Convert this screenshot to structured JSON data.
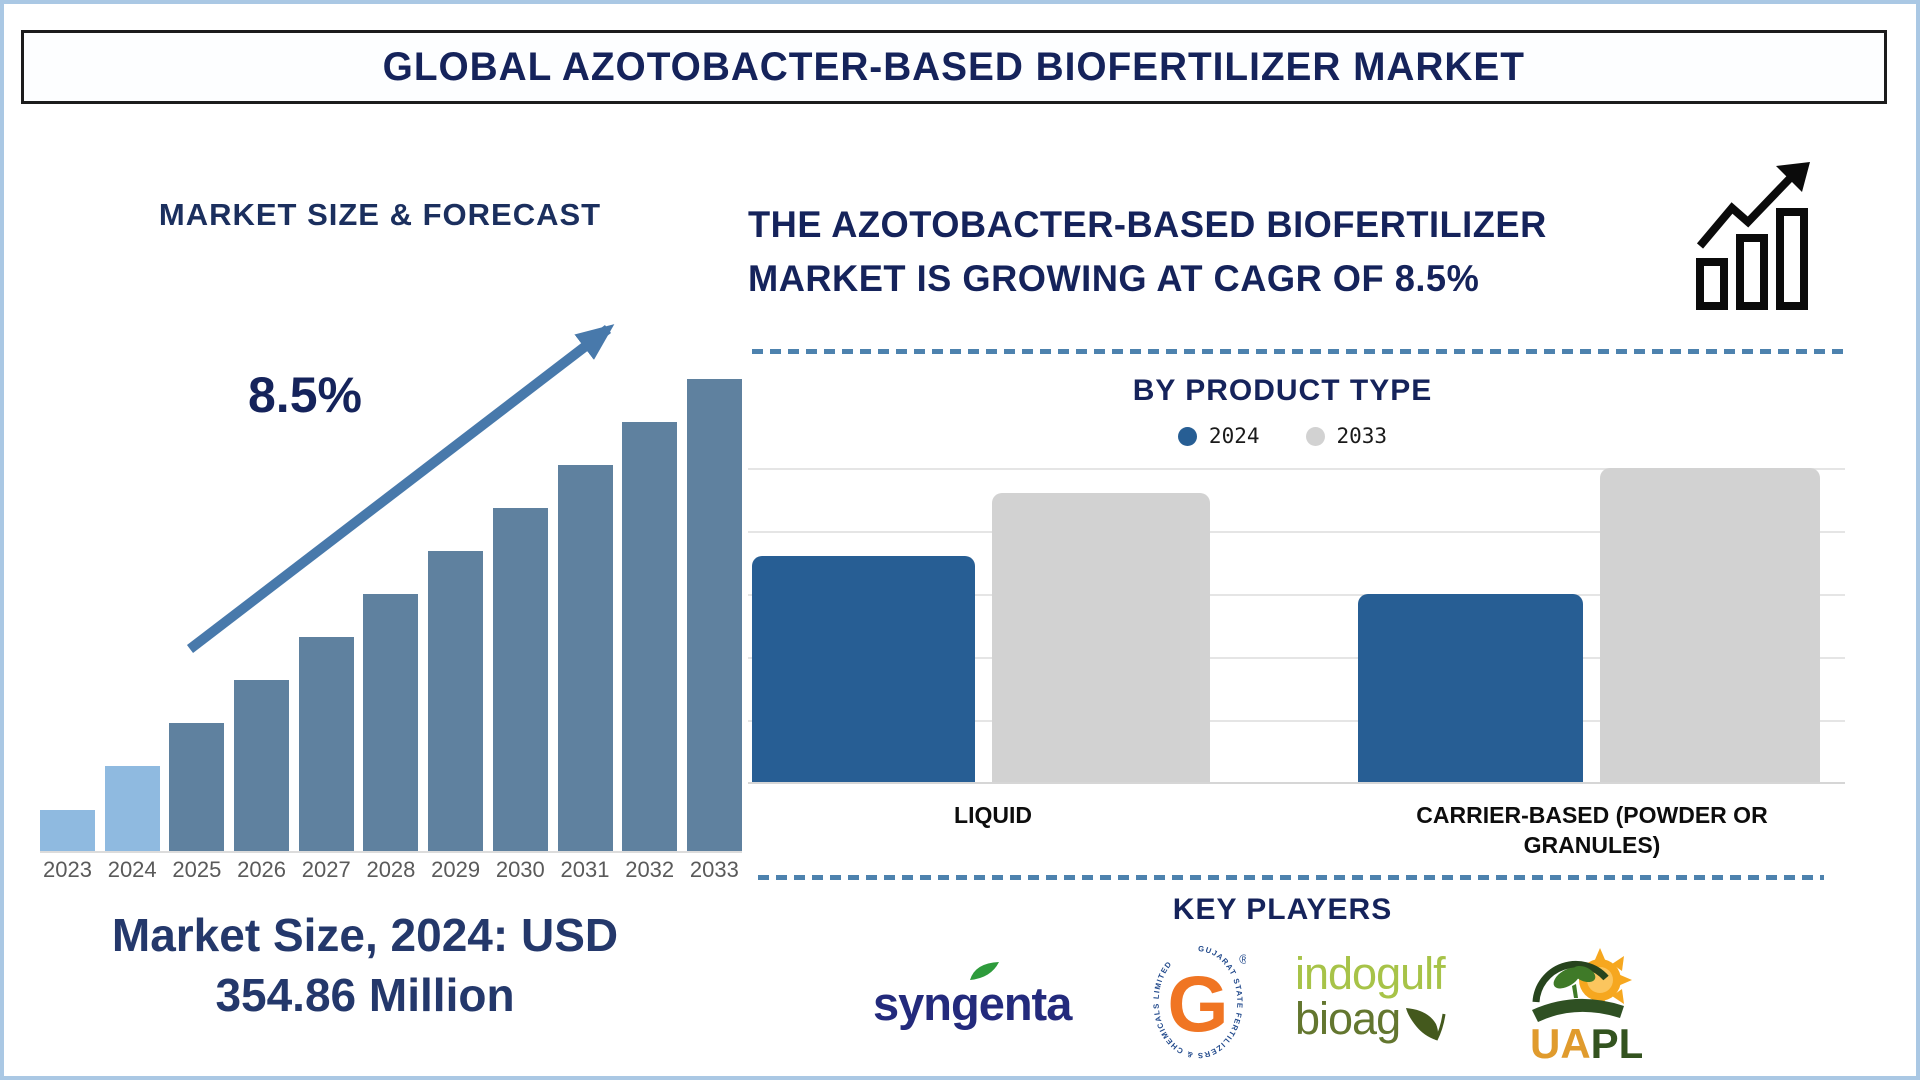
{
  "page": {
    "title": "GLOBAL AZOTOBACTER-BASED BIOFERTILIZER MARKET"
  },
  "left": {
    "heading": "MARKET SIZE & FORECAST",
    "cagr": "8.5%",
    "caption_line1": "Market Size, 2024: USD",
    "caption_line2": "354.86 Million"
  },
  "right": {
    "headline_line1": "THE AZOTOBACTER-BASED BIOFERTILIZER",
    "headline_line2": "MARKET IS GROWING AT CAGR OF 8.5%"
  },
  "product_section": {
    "heading": "BY PRODUCT TYPE",
    "legend": [
      {
        "label": "2024",
        "color": "#275e94"
      },
      {
        "label": "2033",
        "color": "#d2d2d2"
      }
    ],
    "categories": [
      "LIQUID",
      "CARRIER-BASED (POWDER OR GRANULES)"
    ]
  },
  "key_players": {
    "heading": "KEY PLAYERS",
    "players": [
      {
        "name": "Syngenta",
        "wordmark": "syngenta"
      },
      {
        "name": "Gujarat State Fertilizers & Chemicals Limited",
        "monogram": "G",
        "registered": "®",
        "circular_text": "GUJARAT STATE FERTILIZERS & CHEMICALS LIMITED"
      },
      {
        "name": "Indogulf BioAg",
        "word1": "indogulf",
        "word2": "bioag"
      },
      {
        "name": "UAPL",
        "part1": "UA",
        "part2": "PL"
      }
    ]
  },
  "chart_data": [
    {
      "type": "bar",
      "title": "MARKET SIZE & FORECAST",
      "categories": [
        "2023",
        "2024",
        "2025",
        "2026",
        "2027",
        "2028",
        "2029",
        "2030",
        "2031",
        "2032",
        "2033"
      ],
      "values_relative": [
        0.087,
        0.18,
        0.271,
        0.362,
        0.453,
        0.544,
        0.636,
        0.727,
        0.818,
        0.909,
        1.0
      ],
      "known_values": {
        "2024_usd_million": 354.86
      },
      "cagr_percent": 8.5,
      "historical_years": [
        "2023",
        "2024"
      ],
      "bar_colors": {
        "historical": "#8fbae0",
        "forecast": "#5f819f"
      },
      "y_axis_visible": false,
      "xlabel": "",
      "ylabel": ""
    },
    {
      "type": "bar",
      "title": "BY PRODUCT TYPE",
      "categories": [
        "LIQUID",
        "CARRIER-BASED (POWDER OR GRANULES)"
      ],
      "series": [
        {
          "name": "2024",
          "color": "#275e94",
          "values_relative": [
            0.72,
            0.6
          ]
        },
        {
          "name": "2033",
          "color": "#d2d2d2",
          "values_relative": [
            0.92,
            1.0
          ]
        }
      ],
      "gridlines": true,
      "legend_position": "top",
      "y_axis_visible": false
    }
  ],
  "colors": {
    "accent_navy": "#15235b",
    "arrow_blue": "#4879ab",
    "dash_blue": "#4d82ae",
    "frame_blue": "#aac8e4"
  }
}
